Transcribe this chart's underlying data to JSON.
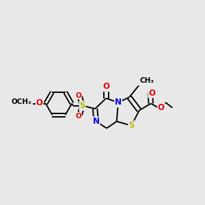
{
  "bg_color": "#e8e8e8",
  "atom_colors": {
    "N": "#0000ee",
    "S": "#bbbb00",
    "O": "#ee0000",
    "C": "#000000"
  },
  "lw": 1.4,
  "fs": 8.5,
  "dbo": 0.014
}
